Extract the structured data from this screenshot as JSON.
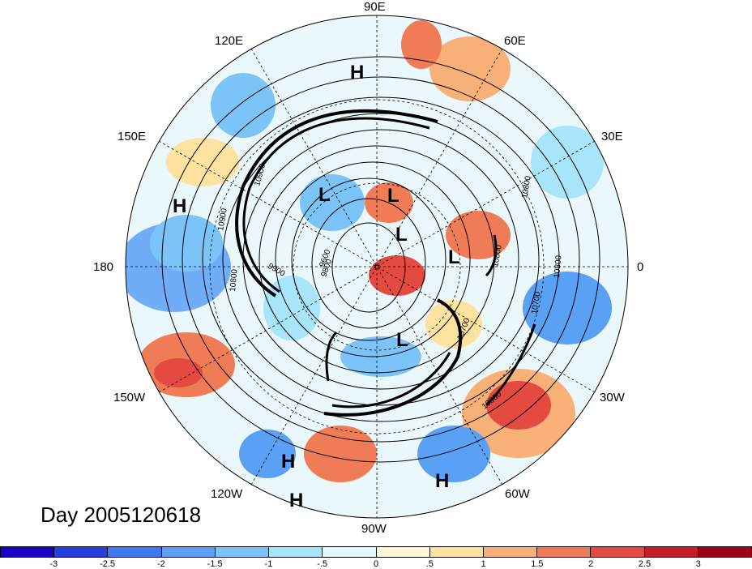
{
  "title": "Day 2005120618",
  "lon_labels": [
    "90E",
    "60E",
    "30E",
    "0",
    "30W",
    "60W",
    "90W",
    "120W",
    "150W",
    "180",
    "150E",
    "120E"
  ],
  "pressure_centers": [
    "H",
    "L",
    "L",
    "L",
    "L",
    "L",
    "H",
    "H",
    "H",
    "H"
  ],
  "contour_labels": [
    "10900",
    "10800",
    "9900",
    "9800",
    "10800",
    "10700",
    "10800",
    "10800",
    "10900",
    "10800",
    "10700",
    "9600"
  ],
  "colorbar": {
    "ticks": [
      "-3",
      "-2.5",
      "-2",
      "-1.5",
      "-1",
      "-.5",
      "0",
      ".5",
      "1",
      "1.5",
      "2",
      "2.5",
      "3"
    ],
    "colors": [
      "#1c00c8",
      "#2040e0",
      "#3c78ee",
      "#5aa0f4",
      "#7cc4f8",
      "#a8e4fa",
      "#e6f8fc",
      "#fff8d8",
      "#fde2a0",
      "#f6b078",
      "#ef7c56",
      "#e44a40",
      "#c81c28",
      "#a0001c"
    ]
  }
}
